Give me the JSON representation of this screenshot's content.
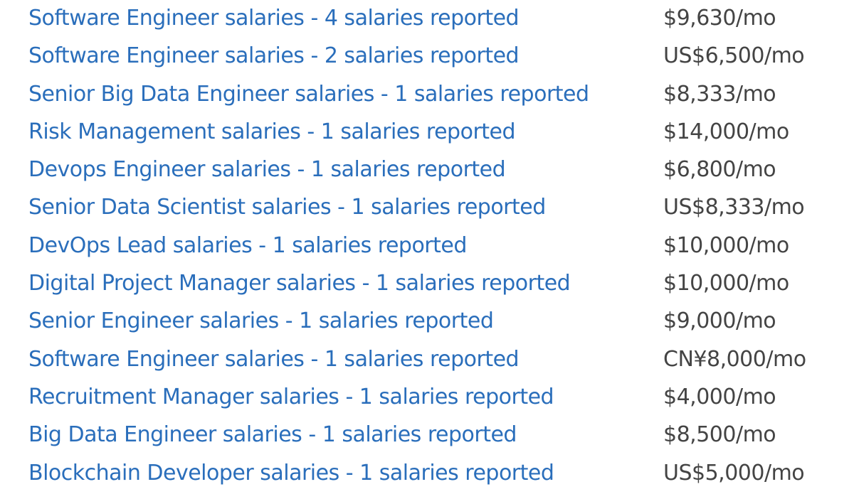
{
  "salaries": [
    {
      "label": "Software Engineer salaries - 4 salaries reported",
      "amount": "$9,630/mo"
    },
    {
      "label": "Software Engineer salaries - 2 salaries reported",
      "amount": "US$6,500/mo"
    },
    {
      "label": "Senior Big Data Engineer salaries - 1 salaries reported",
      "amount": "$8,333/mo"
    },
    {
      "label": "Risk Management salaries - 1 salaries reported",
      "amount": "$14,000/mo"
    },
    {
      "label": "Devops Engineer salaries - 1 salaries reported",
      "amount": "$6,800/mo"
    },
    {
      "label": "Senior Data Scientist salaries - 1 salaries reported",
      "amount": "US$8,333/mo"
    },
    {
      "label": "DevOps Lead salaries - 1 salaries reported",
      "amount": "$10,000/mo"
    },
    {
      "label": "Digital Project Manager salaries - 1 salaries reported",
      "amount": "$10,000/mo"
    },
    {
      "label": "Senior Engineer salaries - 1 salaries reported",
      "amount": "$9,000/mo"
    },
    {
      "label": "Software Engineer salaries - 1 salaries reported",
      "amount": "CN¥8,000/mo"
    },
    {
      "label": "Recruitment Manager salaries - 1 salaries reported",
      "amount": "$4,000/mo"
    },
    {
      "label": "Big Data Engineer salaries - 1 salaries reported",
      "amount": "$8,500/mo"
    },
    {
      "label": "Blockchain Developer salaries - 1 salaries reported",
      "amount": "US$5,000/mo"
    }
  ],
  "colors": {
    "link": "#2a6ebb",
    "amount": "#444444",
    "background": "#ffffff"
  }
}
